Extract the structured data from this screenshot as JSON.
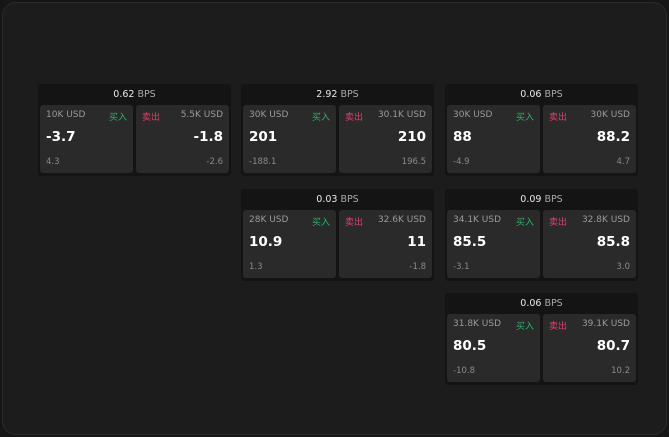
{
  "panels": [
    {
      "bps": "0.62",
      "unit": "BPS",
      "buy": {
        "size": "10K USD",
        "label": "买入",
        "price": "-3.7",
        "change": "4.3"
      },
      "sell": {
        "size": "5.5K USD",
        "label": "卖出",
        "price": "-1.8",
        "change": "-2.6"
      }
    },
    {
      "bps": "2.92",
      "unit": "BPS",
      "buy": {
        "size": "30K USD",
        "label": "买入",
        "price": "201",
        "change": "-188.1"
      },
      "sell": {
        "size": "30.1K USD",
        "label": "卖出",
        "price": "210",
        "change": "196.5"
      }
    },
    {
      "bps": "0.06",
      "unit": "BPS",
      "buy": {
        "size": "30K USD",
        "label": "买入",
        "price": "88",
        "change": "-4.9"
      },
      "sell": {
        "size": "30K USD",
        "label": "卖出",
        "price": "88.2",
        "change": "4.7"
      }
    },
    {
      "bps": "0.03",
      "unit": "BPS",
      "buy": {
        "size": "28K USD",
        "label": "买入",
        "price": "10.9",
        "change": "1.3"
      },
      "sell": {
        "size": "32.6K USD",
        "label": "卖出",
        "price": "11",
        "change": "-1.8"
      }
    },
    {
      "bps": "0.09",
      "unit": "BPS",
      "buy": {
        "size": "34.1K USD",
        "label": "买入",
        "price": "85.5",
        "change": "-3.1"
      },
      "sell": {
        "size": "32.8K USD",
        "label": "卖出",
        "price": "85.8",
        "change": "3.0"
      }
    },
    {
      "bps": "0.06",
      "unit": "BPS",
      "buy": {
        "size": "31.8K USD",
        "label": "买入",
        "price": "80.5",
        "change": "-10.8"
      },
      "sell": {
        "size": "39.1K USD",
        "label": "卖出",
        "price": "80.7",
        "change": "10.2"
      }
    }
  ],
  "colors": {
    "buy": "#2fb36a",
    "sell": "#e0406a",
    "background": "#1c1c1c"
  }
}
